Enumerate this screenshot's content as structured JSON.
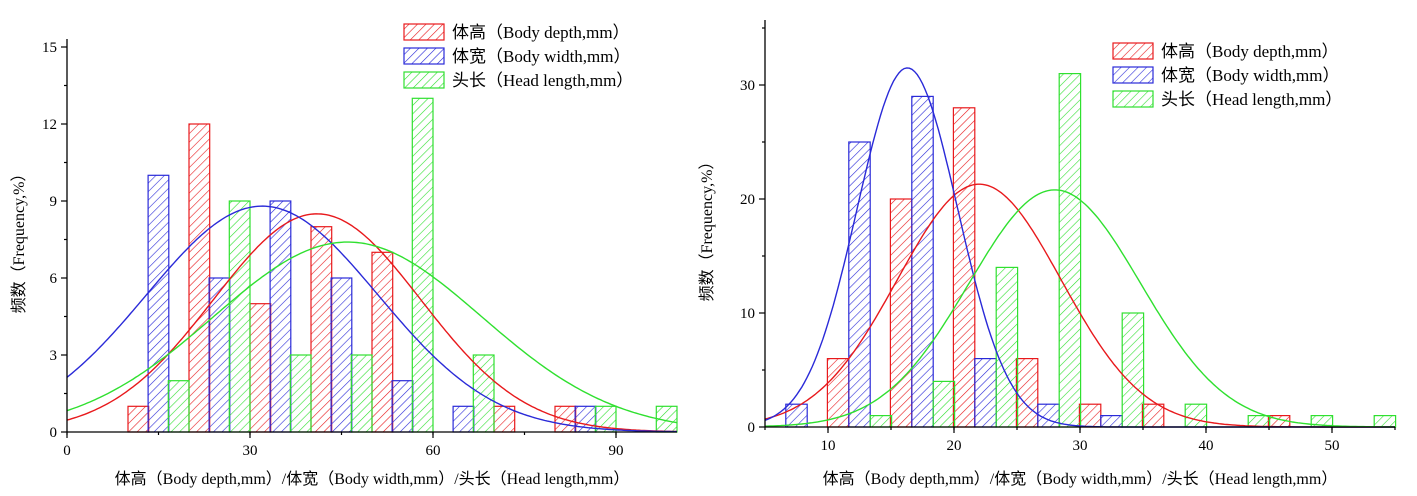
{
  "chart_data": [
    {
      "type": "bar",
      "xlabel": "体高（Body depth,mm）/体宽（Body width,mm）/头长（Head length,mm）",
      "ylabel": "频数（Frequency,%）",
      "xlim": [
        0,
        100
      ],
      "ylim": [
        0,
        15
      ],
      "xticks": [
        0,
        30,
        60,
        90
      ],
      "yticks": [
        0,
        3,
        6,
        9,
        12,
        15
      ],
      "xtick_labels": [
        "0",
        "30",
        "60",
        "90"
      ],
      "ytick_labels": [
        "0",
        "3",
        "6",
        "9",
        "12",
        "15"
      ],
      "bar_width": 3.4,
      "legend_position": "top-right",
      "series": [
        {
          "name": "体高（Body depth,mm）",
          "color": "#e8191c",
          "x": [
            11.7,
            21.7,
            31.7,
            41.7,
            51.7,
            71.7,
            81.7
          ],
          "values": [
            1,
            12,
            5,
            8,
            7,
            1,
            1
          ],
          "fit": {
            "mean": 41,
            "sd": 17,
            "peak": 8.5
          }
        },
        {
          "name": "体宽（Body width,mm）",
          "color": "#2a2ad8",
          "x": [
            15,
            25,
            35,
            45,
            55,
            65,
            85
          ],
          "values": [
            10,
            6,
            9,
            6,
            2,
            1,
            1
          ],
          "fit": {
            "mean": 32,
            "sd": 19,
            "peak": 8.8
          }
        },
        {
          "name": "头长（Head length,mm）",
          "color": "#2fe02f",
          "x": [
            18.3,
            28.3,
            38.3,
            48.3,
            58.3,
            68.3,
            88.3,
            98.3
          ],
          "values": [
            2,
            9,
            3,
            3,
            13,
            3,
            1,
            1
          ],
          "fit": {
            "mean": 46,
            "sd": 22,
            "peak": 7.4
          }
        }
      ]
    },
    {
      "type": "bar",
      "xlabel": "体高（Body depth,mm）/体宽（Body width,mm）/头长（Head length,mm）",
      "ylabel": "频数（Frequency,%）",
      "xlim": [
        5,
        55
      ],
      "ylim": [
        0,
        35
      ],
      "xticks": [
        10,
        20,
        30,
        40,
        50
      ],
      "yticks": [
        0,
        10,
        20,
        30
      ],
      "xtick_labels": [
        "10",
        "20",
        "30",
        "40",
        "50"
      ],
      "ytick_labels": [
        "0",
        "10",
        "20",
        "30"
      ],
      "bar_width": 1.7,
      "legend_position": "top-right",
      "series": [
        {
          "name": "体高（Body depth,mm）",
          "color": "#e8191c",
          "x": [
            10.8,
            15.8,
            20.8,
            25.8,
            30.8,
            35.8,
            45.8
          ],
          "values": [
            6,
            20,
            28,
            6,
            2,
            2,
            1
          ],
          "fit": {
            "mean": 22,
            "sd": 6.5,
            "peak": 21.3
          }
        },
        {
          "name": "体宽（Body width,mm）",
          "color": "#2a2ad8",
          "x": [
            7.5,
            12.5,
            17.5,
            22.5,
            27.5,
            32.5
          ],
          "values": [
            2,
            25,
            29,
            6,
            2,
            1
          ],
          "fit": {
            "mean": 16.3,
            "sd": 4.0,
            "peak": 31.5
          }
        },
        {
          "name": "头长（Head length,mm）",
          "color": "#2fe02f",
          "x": [
            14.2,
            19.2,
            24.2,
            29.2,
            34.2,
            39.2,
            44.2,
            49.2,
            54.2
          ],
          "values": [
            1,
            4,
            14,
            31,
            10,
            2,
            1,
            1,
            1
          ],
          "fit": {
            "mean": 28,
            "sd": 6.8,
            "peak": 20.8
          }
        }
      ]
    }
  ]
}
